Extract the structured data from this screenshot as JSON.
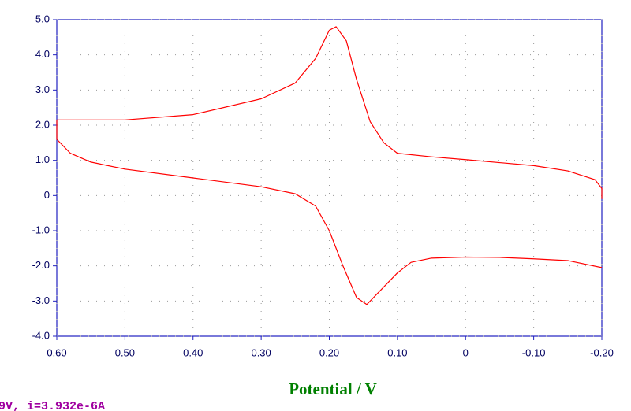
{
  "chart_data": {
    "type": "line",
    "x_label": "Potential / V",
    "x": [
      0.6,
      0.5,
      0.4,
      0.3,
      0.25,
      0.22,
      0.2,
      0.19,
      0.175,
      0.16,
      0.14,
      0.12,
      0.1,
      0.05,
      0,
      -0.1,
      -0.15,
      -0.19,
      -0.2,
      -0.2,
      null,
      -0.2,
      -0.15,
      -0.1,
      -0.05,
      0,
      0.05,
      0.08,
      0.1,
      0.12,
      0.145,
      0.16,
      0.18,
      0.2,
      0.22,
      0.25,
      0.3,
      0.4,
      0.5,
      0.55,
      0.58,
      0.6,
      0.6
    ],
    "series": [
      {
        "color": "#ff0000",
        "values": [
          2.15,
          2.15,
          2.3,
          2.75,
          3.2,
          3.9,
          4.7,
          4.8,
          4.4,
          3.3,
          2.1,
          1.5,
          1.2,
          1.1,
          1.02,
          0.85,
          0.7,
          0.45,
          0.2,
          -0.1,
          null,
          -2.05,
          -1.85,
          -1.8,
          -1.76,
          -1.75,
          -1.78,
          -1.9,
          -2.2,
          -2.6,
          -3.1,
          -2.9,
          -2.0,
          -1.0,
          -0.3,
          0.05,
          0.25,
          0.5,
          0.75,
          0.95,
          1.2,
          1.6,
          2.15
        ]
      }
    ],
    "xlim": [
      0.6,
      -0.2
    ],
    "ylim": [
      -4,
      5
    ],
    "xticks": [
      {
        "value": 0.6,
        "label": "0.60"
      },
      {
        "value": 0.5,
        "label": "0.50"
      },
      {
        "value": 0.4,
        "label": "0.40"
      },
      {
        "value": 0.3,
        "label": "0.30"
      },
      {
        "value": 0.2,
        "label": "0.20"
      },
      {
        "value": 0.1,
        "label": "0.10"
      },
      0,
      {
        "value": -0.1,
        "label": "-0.10"
      },
      {
        "value": -0.2,
        "label": "-0.20"
      }
    ],
    "yticks": [
      {
        "value": 5,
        "label": "5.0"
      },
      {
        "value": 4,
        "label": "4.0"
      },
      {
        "value": 3,
        "label": "3.0"
      },
      {
        "value": 2,
        "label": "2.0"
      },
      {
        "value": 1,
        "label": "1.0"
      },
      0,
      {
        "value": -1,
        "label": "-1.0"
      },
      {
        "value": -2,
        "label": "-2.0"
      },
      {
        "value": -3,
        "label": "-3.0"
      },
      {
        "value": -4,
        "label": "-4.0"
      }
    ],
    "grid": true
  },
  "status_text": "9V, i=3.932e-6A"
}
